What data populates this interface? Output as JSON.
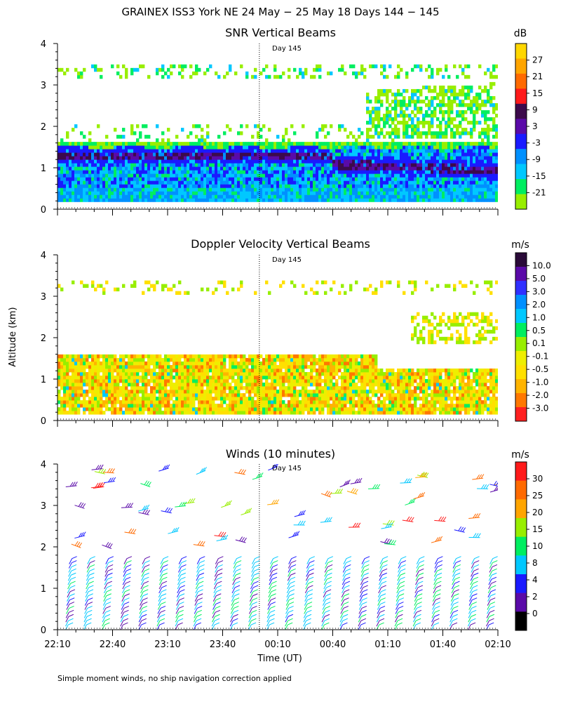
{
  "page": {
    "title": "GRAINEX ISS3 York NE  24 May − 25 May 18 Days 144 − 145",
    "ylabel": "Altitude (km)",
    "xlabel": "Time (UT)",
    "footnote": "Simple moment winds, no ship navigation correction applied",
    "day_marker": "Day 145"
  },
  "chart_data": [
    {
      "type": "heatmap",
      "title": "SNR Vertical Beams",
      "units": "dB",
      "xlabel": "Time (UT)",
      "ylabel": "Altitude (km)",
      "x_ticks": [
        "22:10",
        "22:40",
        "23:10",
        "23:40",
        "00:10",
        "00:40",
        "01:10",
        "01:40",
        "02:10"
      ],
      "y_ticks": [
        "0",
        "1",
        "2",
        "3",
        "4"
      ],
      "ylim": [
        0,
        4
      ],
      "colorbar": {
        "labels": [
          "27",
          "21",
          "15",
          "9",
          "3",
          "-3",
          "-9",
          "-15",
          "-21"
        ],
        "colors": [
          "#ffd700",
          "#ffa500",
          "#ff6a00",
          "#ff1a1a",
          "#3c0a4b",
          "#5a0aa8",
          "#1a1aff",
          "#0090ff",
          "#00c8ff",
          "#00ee60",
          "#98ee00"
        ]
      },
      "description_layers": [
        {
          "name": "dense echo layer",
          "altitude_km": [
            0.2,
            1.6
          ],
          "peak_dB": 9
        },
        {
          "name": "upper patchy echoes",
          "altitude_km": [
            1.6,
            3.6
          ],
          "peak_dB": -15
        }
      ]
    },
    {
      "type": "heatmap",
      "title": "Doppler Velocity Vertical Beams",
      "units": "m/s",
      "xlabel": "Time (UT)",
      "ylabel": "Altitude (km)",
      "x_ticks": [
        "22:10",
        "22:40",
        "23:10",
        "23:40",
        "00:10",
        "00:40",
        "01:10",
        "01:40",
        "02:10"
      ],
      "y_ticks": [
        "0",
        "1",
        "2",
        "3",
        "4"
      ],
      "ylim": [
        0,
        4
      ],
      "colorbar": {
        "labels": [
          "10.0",
          "5.0",
          "3.0",
          "2.0",
          "1.0",
          "0.5",
          "0.1",
          "-0.1",
          "-0.5",
          "-1.0",
          "-2.0",
          "-3.0"
        ],
        "colors": [
          "#2a0a38",
          "#5a0aa8",
          "#3030ff",
          "#0090ff",
          "#00c8ff",
          "#00ee60",
          "#98ee00",
          "#eeee00",
          "#ffe000",
          "#ffb400",
          "#ff7800",
          "#ff2020"
        ]
      }
    },
    {
      "type": "scatter",
      "title": "Winds (10 minutes)",
      "units": "m/s",
      "xlabel": "Time (UT)",
      "ylabel": "Altitude (km)",
      "x_ticks": [
        "22:10",
        "22:40",
        "23:10",
        "23:40",
        "00:10",
        "00:40",
        "01:10",
        "01:40",
        "02:10"
      ],
      "y_ticks": [
        "0",
        "1",
        "2",
        "3",
        "4"
      ],
      "ylim": [
        0,
        4
      ],
      "colorbar": {
        "labels": [
          "30",
          "25",
          "20",
          "15",
          "10",
          "8",
          "4",
          "2",
          "0"
        ],
        "colors": [
          "#ff1a1a",
          "#ff6a00",
          "#ffa500",
          "#98ee00",
          "#00ee60",
          "#00c8ff",
          "#1a1aff",
          "#5a0aa8",
          "#000000"
        ]
      },
      "profile_times_index": 24
    }
  ]
}
